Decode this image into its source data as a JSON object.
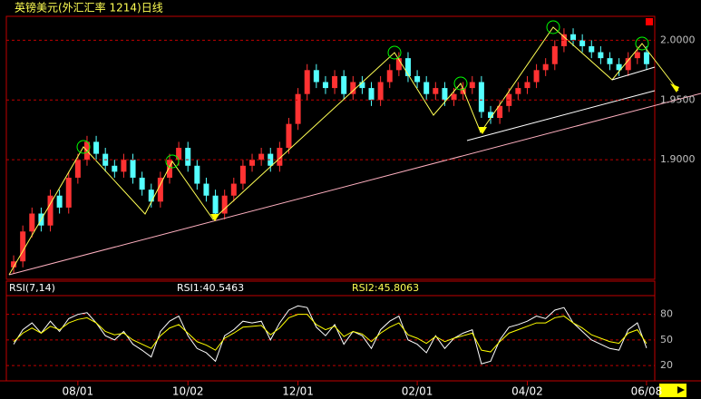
{
  "chart_data": [
    {
      "type": "candlestick",
      "title": "英镑美元(外汇汇率 1214)日线",
      "categories": [
        null,
        null,
        null,
        null,
        null,
        null,
        null,
        "08/01",
        null,
        null,
        null,
        null,
        null,
        null,
        null,
        null,
        null,
        null,
        null,
        "10/02",
        null,
        null,
        null,
        null,
        null,
        null,
        null,
        null,
        null,
        null,
        null,
        "12/01",
        null,
        null,
        null,
        null,
        null,
        null,
        null,
        null,
        null,
        null,
        null,
        null,
        "02/01",
        null,
        null,
        null,
        null,
        null,
        null,
        null,
        null,
        null,
        null,
        null,
        "04/02",
        null,
        null,
        null,
        null,
        null,
        null,
        null,
        null,
        null,
        null,
        null,
        null,
        "06/08"
      ],
      "open": [
        1.81,
        1.815,
        1.84,
        1.855,
        1.845,
        1.87,
        1.86,
        1.885,
        1.9,
        1.915,
        1.905,
        1.895,
        1.89,
        1.9,
        1.885,
        1.875,
        1.865,
        1.885,
        1.9,
        1.91,
        1.895,
        1.88,
        1.87,
        1.855,
        1.87,
        1.88,
        1.895,
        1.9,
        1.905,
        1.895,
        1.91,
        1.93,
        1.955,
        1.975,
        1.965,
        1.96,
        1.97,
        1.955,
        1.965,
        1.96,
        1.95,
        1.965,
        1.975,
        1.985,
        1.97,
        1.965,
        1.955,
        1.96,
        1.95,
        1.955,
        1.96,
        1.965,
        1.94,
        1.935,
        1.945,
        1.955,
        1.96,
        1.965,
        1.975,
        1.98,
        1.995,
        2.005,
        2.0,
        1.995,
        1.99,
        1.985,
        1.98,
        1.975,
        1.985,
        1.99
      ],
      "high": [
        1.82,
        1.845,
        1.86,
        1.86,
        1.875,
        1.875,
        1.89,
        1.905,
        1.92,
        1.92,
        1.91,
        1.9,
        1.905,
        1.905,
        1.89,
        1.88,
        1.89,
        1.905,
        1.915,
        1.915,
        1.9,
        1.885,
        1.875,
        1.875,
        1.885,
        1.9,
        1.905,
        1.91,
        1.91,
        1.915,
        1.935,
        1.96,
        1.98,
        1.98,
        1.97,
        1.975,
        1.975,
        1.97,
        1.97,
        1.965,
        1.97,
        1.98,
        1.99,
        1.99,
        1.975,
        1.97,
        1.965,
        1.965,
        1.96,
        1.965,
        1.97,
        1.97,
        1.945,
        1.95,
        1.96,
        1.965,
        1.97,
        1.98,
        1.985,
        2.0,
        2.01,
        2.01,
        2.005,
        2.0,
        1.995,
        1.99,
        1.985,
        1.99,
        1.995,
        1.995
      ],
      "low": [
        1.805,
        1.81,
        1.835,
        1.84,
        1.84,
        1.855,
        1.855,
        1.88,
        1.895,
        1.9,
        1.89,
        1.885,
        1.885,
        1.88,
        1.87,
        1.86,
        1.86,
        1.88,
        1.895,
        1.89,
        1.875,
        1.865,
        1.85,
        1.85,
        1.865,
        1.875,
        1.89,
        1.895,
        1.89,
        1.89,
        1.905,
        1.925,
        1.95,
        1.96,
        1.955,
        1.955,
        1.95,
        1.95,
        1.955,
        1.945,
        1.945,
        1.96,
        1.97,
        1.965,
        1.96,
        1.95,
        1.95,
        1.945,
        1.945,
        1.95,
        1.955,
        1.935,
        1.93,
        1.93,
        1.94,
        1.95,
        1.955,
        1.96,
        1.97,
        1.975,
        1.99,
        1.995,
        1.99,
        1.985,
        1.98,
        1.975,
        1.97,
        1.97,
        1.98,
        1.975
      ],
      "close": [
        1.815,
        1.84,
        1.855,
        1.845,
        1.87,
        1.86,
        1.885,
        1.9,
        1.915,
        1.905,
        1.895,
        1.89,
        1.9,
        1.885,
        1.875,
        1.865,
        1.885,
        1.9,
        1.91,
        1.895,
        1.88,
        1.87,
        1.855,
        1.87,
        1.88,
        1.895,
        1.9,
        1.905,
        1.895,
        1.91,
        1.93,
        1.955,
        1.975,
        1.965,
        1.96,
        1.97,
        1.955,
        1.965,
        1.96,
        1.95,
        1.965,
        1.975,
        1.985,
        1.97,
        1.965,
        1.955,
        1.96,
        1.95,
        1.955,
        1.96,
        1.965,
        1.94,
        1.935,
        1.945,
        1.955,
        1.96,
        1.965,
        1.975,
        1.98,
        1.995,
        2.005,
        2.0,
        1.995,
        1.99,
        1.985,
        1.98,
        1.975,
        1.985,
        1.99,
        1.98
      ],
      "up_color": "#ff3232",
      "down_color": "#54ffff",
      "ylim": [
        1.8,
        2.02
      ],
      "yticks": [
        {
          "value": 1.9,
          "label": "1.9000"
        },
        {
          "value": 1.95,
          "label": "1.9500"
        },
        {
          "value": 2.0,
          "label": "2.0000"
        }
      ],
      "grid": true
    },
    {
      "type": "line",
      "legend": [
        "RSI(7,14)",
        "RSI1:40.5463",
        "RSI2:45.8063"
      ],
      "series": [
        {
          "name": "RSI1",
          "color": "#ffffff",
          "values": [
            45,
            62,
            70,
            58,
            72,
            60,
            75,
            80,
            82,
            70,
            55,
            50,
            60,
            45,
            38,
            30,
            60,
            72,
            78,
            55,
            40,
            35,
            25,
            55,
            62,
            72,
            70,
            72,
            50,
            70,
            85,
            90,
            88,
            65,
            55,
            68,
            45,
            60,
            55,
            40,
            62,
            72,
            78,
            50,
            45,
            35,
            55,
            40,
            52,
            58,
            62,
            22,
            25,
            50,
            65,
            68,
            72,
            78,
            75,
            85,
            88,
            70,
            60,
            50,
            45,
            40,
            38,
            62,
            70,
            40.5463
          ]
        },
        {
          "name": "RSI2",
          "color": "#ffff00",
          "values": [
            48,
            58,
            64,
            58,
            66,
            62,
            70,
            74,
            76,
            70,
            60,
            56,
            58,
            50,
            45,
            40,
            55,
            64,
            68,
            58,
            48,
            44,
            38,
            52,
            58,
            65,
            66,
            67,
            56,
            64,
            76,
            80,
            80,
            68,
            62,
            66,
            54,
            60,
            57,
            48,
            58,
            65,
            70,
            56,
            52,
            46,
            54,
            48,
            52,
            55,
            58,
            38,
            36,
            48,
            58,
            62,
            66,
            70,
            70,
            76,
            78,
            70,
            64,
            56,
            52,
            48,
            46,
            58,
            62,
            45.8063
          ]
        }
      ],
      "ylim": [
        2,
        102
      ],
      "yticks": [
        20,
        50,
        80
      ],
      "grid": true
    }
  ]
}
